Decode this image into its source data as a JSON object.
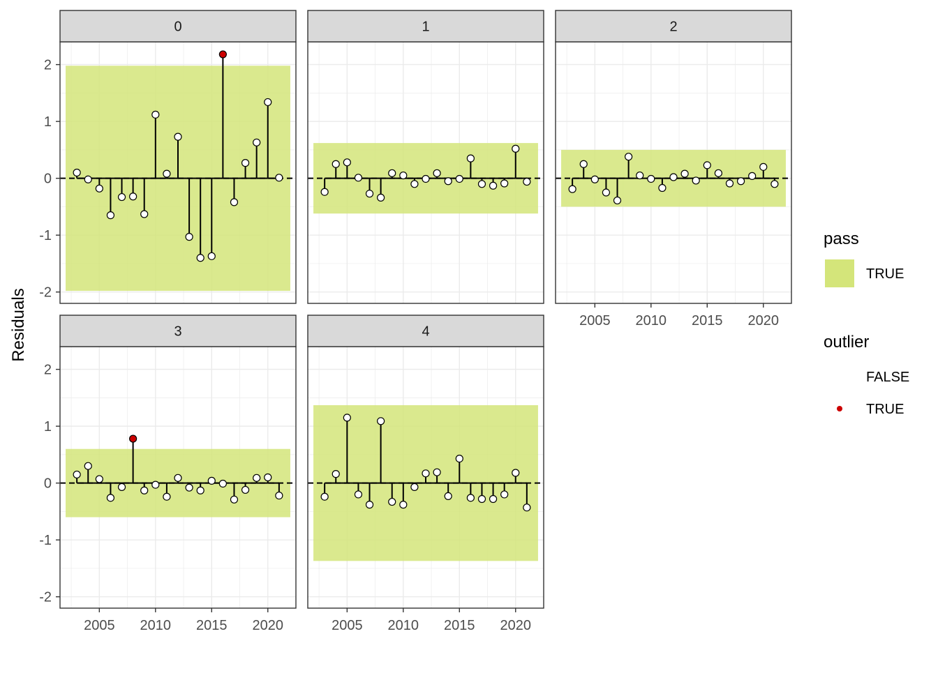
{
  "chart_data": {
    "type": "scatter",
    "ylabel": "Residuals",
    "xlabel": "",
    "xlim": [
      2001.5,
      2022.5
    ],
    "ylim": [
      -2.2,
      2.4
    ],
    "x_ticks": [
      2005,
      2010,
      2015,
      2020
    ],
    "y_ticks": [
      -2,
      -1,
      0,
      1,
      2
    ],
    "x_tick_labels": [
      "2005",
      "2010",
      "2015",
      "2020"
    ],
    "y_tick_labels": [
      "-2",
      "-1",
      "0",
      "1",
      "2"
    ],
    "band_color": "#d4e57a",
    "point_fill": "#ffffff",
    "outlier_color": "#cc0000",
    "panels": [
      {
        "name": "0",
        "band": {
          "xmin": 2002,
          "xmax": 2022,
          "ymin": -1.98,
          "ymax": 1.98
        },
        "points": [
          {
            "x": 2003,
            "y": 0.1,
            "outlier": false
          },
          {
            "x": 2004,
            "y": -0.02,
            "outlier": false
          },
          {
            "x": 2005,
            "y": -0.18,
            "outlier": false
          },
          {
            "x": 2006,
            "y": -0.65,
            "outlier": false
          },
          {
            "x": 2007,
            "y": -0.33,
            "outlier": false
          },
          {
            "x": 2008,
            "y": -0.32,
            "outlier": false
          },
          {
            "x": 2009,
            "y": -0.63,
            "outlier": false
          },
          {
            "x": 2010,
            "y": 1.12,
            "outlier": false
          },
          {
            "x": 2011,
            "y": 0.08,
            "outlier": false
          },
          {
            "x": 2012,
            "y": 0.73,
            "outlier": false
          },
          {
            "x": 2013,
            "y": -1.03,
            "outlier": false
          },
          {
            "x": 2014,
            "y": -1.4,
            "outlier": false
          },
          {
            "x": 2015,
            "y": -1.37,
            "outlier": false
          },
          {
            "x": 2016,
            "y": 2.18,
            "outlier": true
          },
          {
            "x": 2017,
            "y": -0.42,
            "outlier": false
          },
          {
            "x": 2018,
            "y": 0.27,
            "outlier": false
          },
          {
            "x": 2019,
            "y": 0.63,
            "outlier": false
          },
          {
            "x": 2020,
            "y": 1.34,
            "outlier": false
          },
          {
            "x": 2021,
            "y": 0.01,
            "outlier": false
          }
        ]
      },
      {
        "name": "1",
        "band": {
          "xmin": 2002,
          "xmax": 2022,
          "ymin": -0.62,
          "ymax": 0.62
        },
        "points": [
          {
            "x": 2003,
            "y": -0.24,
            "outlier": false
          },
          {
            "x": 2004,
            "y": 0.25,
            "outlier": false
          },
          {
            "x": 2005,
            "y": 0.28,
            "outlier": false
          },
          {
            "x": 2006,
            "y": 0.01,
            "outlier": false
          },
          {
            "x": 2007,
            "y": -0.27,
            "outlier": false
          },
          {
            "x": 2008,
            "y": -0.34,
            "outlier": false
          },
          {
            "x": 2009,
            "y": 0.09,
            "outlier": false
          },
          {
            "x": 2010,
            "y": 0.05,
            "outlier": false
          },
          {
            "x": 2011,
            "y": -0.1,
            "outlier": false
          },
          {
            "x": 2012,
            "y": -0.01,
            "outlier": false
          },
          {
            "x": 2013,
            "y": 0.09,
            "outlier": false
          },
          {
            "x": 2014,
            "y": -0.05,
            "outlier": false
          },
          {
            "x": 2015,
            "y": -0.01,
            "outlier": false
          },
          {
            "x": 2016,
            "y": 0.35,
            "outlier": false
          },
          {
            "x": 2017,
            "y": -0.1,
            "outlier": false
          },
          {
            "x": 2018,
            "y": -0.13,
            "outlier": false
          },
          {
            "x": 2019,
            "y": -0.09,
            "outlier": false
          },
          {
            "x": 2020,
            "y": 0.52,
            "outlier": false
          },
          {
            "x": 2021,
            "y": -0.06,
            "outlier": false
          }
        ]
      },
      {
        "name": "2",
        "band": {
          "xmin": 2002,
          "xmax": 2022,
          "ymin": -0.5,
          "ymax": 0.5
        },
        "points": [
          {
            "x": 2003,
            "y": -0.19,
            "outlier": false
          },
          {
            "x": 2004,
            "y": 0.25,
            "outlier": false
          },
          {
            "x": 2005,
            "y": -0.02,
            "outlier": false
          },
          {
            "x": 2006,
            "y": -0.25,
            "outlier": false
          },
          {
            "x": 2007,
            "y": -0.39,
            "outlier": false
          },
          {
            "x": 2008,
            "y": 0.38,
            "outlier": false
          },
          {
            "x": 2009,
            "y": 0.05,
            "outlier": false
          },
          {
            "x": 2010,
            "y": -0.01,
            "outlier": false
          },
          {
            "x": 2011,
            "y": -0.17,
            "outlier": false
          },
          {
            "x": 2012,
            "y": 0.02,
            "outlier": false
          },
          {
            "x": 2013,
            "y": 0.08,
            "outlier": false
          },
          {
            "x": 2014,
            "y": -0.04,
            "outlier": false
          },
          {
            "x": 2015,
            "y": 0.23,
            "outlier": false
          },
          {
            "x": 2016,
            "y": 0.09,
            "outlier": false
          },
          {
            "x": 2017,
            "y": -0.09,
            "outlier": false
          },
          {
            "x": 2018,
            "y": -0.05,
            "outlier": false
          },
          {
            "x": 2019,
            "y": 0.04,
            "outlier": false
          },
          {
            "x": 2020,
            "y": 0.2,
            "outlier": false
          },
          {
            "x": 2021,
            "y": -0.1,
            "outlier": false
          }
        ]
      },
      {
        "name": "3",
        "band": {
          "xmin": 2002,
          "xmax": 2022,
          "ymin": -0.6,
          "ymax": 0.6
        },
        "points": [
          {
            "x": 2003,
            "y": 0.15,
            "outlier": false
          },
          {
            "x": 2004,
            "y": 0.3,
            "outlier": false
          },
          {
            "x": 2005,
            "y": 0.07,
            "outlier": false
          },
          {
            "x": 2006,
            "y": -0.26,
            "outlier": false
          },
          {
            "x": 2007,
            "y": -0.07,
            "outlier": false
          },
          {
            "x": 2008,
            "y": 0.78,
            "outlier": true
          },
          {
            "x": 2009,
            "y": -0.13,
            "outlier": false
          },
          {
            "x": 2010,
            "y": -0.03,
            "outlier": false
          },
          {
            "x": 2011,
            "y": -0.24,
            "outlier": false
          },
          {
            "x": 2012,
            "y": 0.09,
            "outlier": false
          },
          {
            "x": 2013,
            "y": -0.08,
            "outlier": false
          },
          {
            "x": 2014,
            "y": -0.13,
            "outlier": false
          },
          {
            "x": 2015,
            "y": 0.04,
            "outlier": false
          },
          {
            "x": 2016,
            "y": -0.01,
            "outlier": false
          },
          {
            "x": 2017,
            "y": -0.29,
            "outlier": false
          },
          {
            "x": 2018,
            "y": -0.12,
            "outlier": false
          },
          {
            "x": 2019,
            "y": 0.09,
            "outlier": false
          },
          {
            "x": 2020,
            "y": 0.1,
            "outlier": false
          },
          {
            "x": 2021,
            "y": -0.22,
            "outlier": false
          }
        ]
      },
      {
        "name": "4",
        "band": {
          "xmin": 2002,
          "xmax": 2022,
          "ymin": -1.37,
          "ymax": 1.37
        },
        "points": [
          {
            "x": 2003,
            "y": -0.24,
            "outlier": false
          },
          {
            "x": 2004,
            "y": 0.16,
            "outlier": false
          },
          {
            "x": 2005,
            "y": 1.15,
            "outlier": false
          },
          {
            "x": 2006,
            "y": -0.2,
            "outlier": false
          },
          {
            "x": 2007,
            "y": -0.38,
            "outlier": false
          },
          {
            "x": 2008,
            "y": 1.09,
            "outlier": false
          },
          {
            "x": 2009,
            "y": -0.33,
            "outlier": false
          },
          {
            "x": 2010,
            "y": -0.38,
            "outlier": false
          },
          {
            "x": 2011,
            "y": -0.07,
            "outlier": false
          },
          {
            "x": 2012,
            "y": 0.17,
            "outlier": false
          },
          {
            "x": 2013,
            "y": 0.19,
            "outlier": false
          },
          {
            "x": 2014,
            "y": -0.23,
            "outlier": false
          },
          {
            "x": 2015,
            "y": 0.43,
            "outlier": false
          },
          {
            "x": 2016,
            "y": -0.26,
            "outlier": false
          },
          {
            "x": 2017,
            "y": -0.28,
            "outlier": false
          },
          {
            "x": 2018,
            "y": -0.28,
            "outlier": false
          },
          {
            "x": 2019,
            "y": -0.2,
            "outlier": false
          },
          {
            "x": 2020,
            "y": 0.18,
            "outlier": false
          },
          {
            "x": 2021,
            "y": -0.43,
            "outlier": false
          }
        ]
      }
    ],
    "legend": {
      "position": "right",
      "groups": [
        {
          "title": "pass",
          "entries": [
            {
              "label": "TRUE",
              "key": "band"
            }
          ]
        },
        {
          "title": "outlier",
          "entries": [
            {
              "label": "FALSE",
              "key": "none"
            },
            {
              "label": "TRUE",
              "key": "dot"
            }
          ]
        }
      ]
    }
  }
}
